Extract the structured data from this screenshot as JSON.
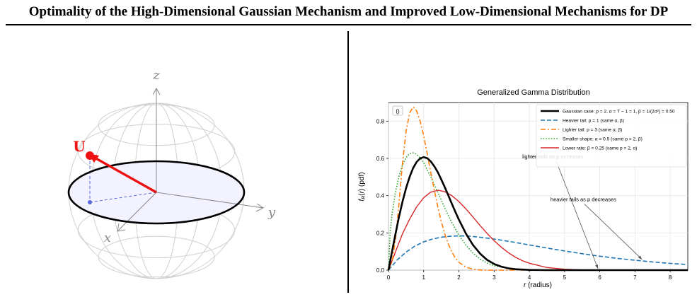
{
  "header": {
    "title": "Optimality of the High-Dimensional Gaussian Mechanism and Improved Low-Dimensional Mechanisms for DP"
  },
  "sphere_figure": {
    "axis_z": "z",
    "axis_y": "y",
    "axis_x": "x",
    "vector_label": "U",
    "colors": {
      "vector": "#ee1111",
      "ring": "#000000",
      "disk_fill": "#f2f3ff",
      "sphere_lines": "#cfcfcf",
      "projection": "#5566dd"
    }
  },
  "chart_data": {
    "type": "line",
    "title": "Generalized Gamma Distribution",
    "xlabel": "r (radius)",
    "ylabel": "f_R(r) (pdf)",
    "xlim": [
      0,
      8.5
    ],
    "ylim": [
      0,
      0.9
    ],
    "xticks": [
      "0",
      "1",
      "2",
      "3",
      "4",
      "5",
      "6",
      "7",
      "8"
    ],
    "yticks": [
      "0.0",
      "0.2",
      "0.4",
      "0.6",
      "0.8"
    ],
    "grid": true,
    "legend_position": "top-right",
    "panel_tag": "()",
    "series": [
      {
        "name": "Gaussian case: p = 2, α = T − 1 = 1, β = 1/(2σ²) = 0.50",
        "color": "#000000",
        "style": "solid",
        "width": 2.6,
        "x": [
          0,
          0.1,
          0.2,
          0.3,
          0.4,
          0.5,
          0.6,
          0.7,
          0.8,
          0.9,
          1.0,
          1.1,
          1.2,
          1.3,
          1.4,
          1.5,
          1.6,
          1.7,
          1.8,
          1.9,
          2.0,
          2.2,
          2.4,
          2.6,
          2.8,
          3.0,
          3.2,
          3.4,
          3.6,
          3.8,
          4.0,
          4.5,
          5.0,
          5.5,
          6.0,
          7.0,
          8.5
        ],
        "y": [
          0,
          0.1,
          0.196,
          0.287,
          0.369,
          0.441,
          0.501,
          0.548,
          0.581,
          0.6,
          0.607,
          0.601,
          0.584,
          0.558,
          0.526,
          0.487,
          0.445,
          0.401,
          0.356,
          0.312,
          0.271,
          0.196,
          0.135,
          0.089,
          0.055,
          0.033,
          0.019,
          0.01,
          0.005,
          0.003,
          0.001,
          0.0,
          0.0,
          0.0,
          0.0,
          0.0,
          0.0
        ]
      },
      {
        "name": "Heavier tail: p = 1 (same α, β)",
        "color": "#1f77b4",
        "style": "dashed",
        "width": 1.6,
        "x": [
          0,
          0.25,
          0.5,
          0.75,
          1.0,
          1.25,
          1.5,
          1.75,
          2.0,
          2.25,
          2.5,
          3.0,
          3.5,
          4.0,
          4.5,
          5.0,
          5.5,
          6.0,
          6.5,
          7.0,
          7.5,
          8.0,
          8.5
        ],
        "y": [
          0,
          0.055,
          0.097,
          0.129,
          0.152,
          0.167,
          0.177,
          0.182,
          0.184,
          0.183,
          0.179,
          0.167,
          0.152,
          0.135,
          0.119,
          0.103,
          0.088,
          0.075,
          0.063,
          0.053,
          0.044,
          0.036,
          0.03
        ]
      },
      {
        "name": "Lighter tail: p = 3 (same α, β)",
        "color": "#ff7f0e",
        "style": "dashdot",
        "width": 1.6,
        "x": [
          0,
          0.1,
          0.2,
          0.3,
          0.4,
          0.5,
          0.6,
          0.7,
          0.8,
          0.9,
          1.0,
          1.1,
          1.2,
          1.3,
          1.4,
          1.5,
          1.6,
          1.7,
          1.8,
          1.9,
          2.0,
          2.2,
          2.4,
          2.6,
          2.8,
          3.0,
          4.0,
          8.5
        ],
        "y": [
          0,
          0.042,
          0.166,
          0.36,
          0.578,
          0.746,
          0.844,
          0.876,
          0.855,
          0.799,
          0.72,
          0.626,
          0.527,
          0.43,
          0.34,
          0.261,
          0.194,
          0.14,
          0.097,
          0.065,
          0.042,
          0.016,
          0.005,
          0.001,
          0.0,
          0.0,
          0.0,
          0.0
        ]
      },
      {
        "name": "Smaller shape: α = 0.5 (same p = 2, β)",
        "color": "#2ca02c",
        "style": "dotted",
        "width": 1.6,
        "x": [
          0,
          0.05,
          0.1,
          0.2,
          0.3,
          0.4,
          0.5,
          0.6,
          0.7,
          0.8,
          0.9,
          1.0,
          1.2,
          1.4,
          1.6,
          1.8,
          2.0,
          2.2,
          2.4,
          2.6,
          2.8,
          3.0,
          3.5,
          4.0,
          8.5
        ],
        "y": [
          0,
          0.212,
          0.3,
          0.42,
          0.505,
          0.566,
          0.604,
          0.625,
          0.63,
          0.622,
          0.603,
          0.576,
          0.502,
          0.418,
          0.333,
          0.255,
          0.188,
          0.134,
          0.091,
          0.06,
          0.038,
          0.024,
          0.007,
          0.002,
          0.0
        ]
      },
      {
        "name": "Lower rate: β = 0.25 (same p = 2, α)",
        "color": "#d62728",
        "style": "solid",
        "width": 1.4,
        "x": [
          0,
          0.2,
          0.4,
          0.6,
          0.8,
          1.0,
          1.2,
          1.414,
          1.6,
          1.8,
          2.0,
          2.2,
          2.4,
          2.6,
          2.8,
          3.0,
          3.2,
          3.4,
          3.6,
          3.8,
          4.0,
          4.5,
          5.0,
          5.5,
          6.0,
          8.5
        ],
        "y": [
          0,
          0.1,
          0.196,
          0.274,
          0.34,
          0.389,
          0.419,
          0.429,
          0.421,
          0.4,
          0.368,
          0.329,
          0.285,
          0.24,
          0.197,
          0.158,
          0.124,
          0.094,
          0.07,
          0.051,
          0.037,
          0.014,
          0.005,
          0.001,
          0.0,
          0.0
        ]
      }
    ],
    "annotations": [
      {
        "text": "lighter tails as p increases",
        "text_x": 3.8,
        "text_y": 0.6,
        "arrow_to_x": 5.95,
        "arrow_to_y": 0.0
      },
      {
        "text": "heavier tails as p decreases",
        "text_x": 4.6,
        "text_y": 0.37,
        "arrow_to_x": 7.2,
        "arrow_to_y": 0.05
      }
    ]
  }
}
